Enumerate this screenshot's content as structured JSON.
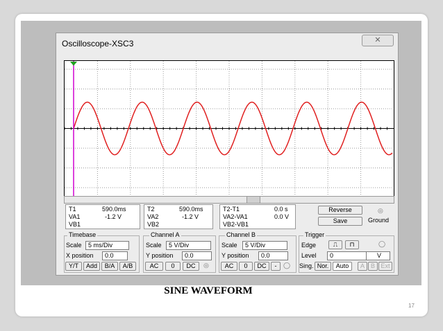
{
  "window": {
    "title": "Oscilloscope-XSC3"
  },
  "readouts": {
    "t1": {
      "label": "T1",
      "time": "590.0ms",
      "va_label": "VA1",
      "va": "-1.2 V",
      "vb_label": "VB1"
    },
    "t2": {
      "label": "T2",
      "time": "590.0ms",
      "va_label": "VA2",
      "va": "-1.2 V",
      "vb_label": "VB2"
    },
    "diff": {
      "label": "T2-T1",
      "time": "0.0 s",
      "va_label": "VA2-VA1",
      "va": "0.0 V",
      "vb_label": "VB2-VB1"
    }
  },
  "buttons": {
    "reverse": "Reverse",
    "save": "Save",
    "ground": "Ground"
  },
  "timebase": {
    "title": "Timebase",
    "scale_label": "Scale",
    "scale": "5 ms/Div",
    "xpos_label": "X position",
    "xpos": "0.0",
    "modes": [
      "Y/T",
      "Add",
      "B/A",
      "A/B"
    ]
  },
  "channel_a": {
    "title": "Channel A",
    "scale_label": "Scale",
    "scale": "5 V/Div",
    "ypos_label": "Y position",
    "ypos": "0.0",
    "coupling": [
      "AC",
      "0",
      "DC"
    ]
  },
  "channel_b": {
    "title": "Channel B",
    "scale_label": "Scale",
    "scale": "5 V/Div",
    "ypos_label": "Y position",
    "ypos": "0.0",
    "coupling": [
      "AC",
      "0",
      "DC",
      "-"
    ]
  },
  "trigger": {
    "title": "Trigger",
    "edge_label": "Edge",
    "level_label": "Level",
    "level": "0",
    "level_unit": "V",
    "modes": [
      "Sing.",
      "Nor.",
      "Auto"
    ],
    "sources": [
      "A",
      "B",
      "Ext"
    ]
  },
  "caption": "SINE WAVEFORM",
  "page_number": "17"
}
